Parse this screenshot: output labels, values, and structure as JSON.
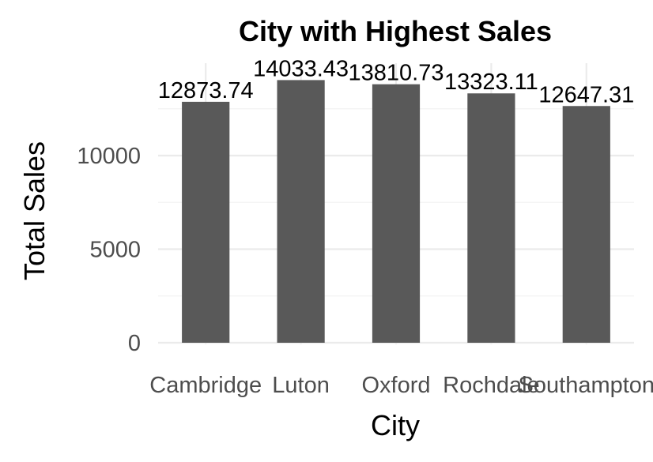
{
  "chart_data": {
    "type": "bar",
    "title": "City with Highest Sales",
    "xlabel": "City",
    "ylabel": "Total Sales",
    "categories": [
      "Cambridge",
      "Luton",
      "Oxford",
      "Rochdale",
      "Southampton"
    ],
    "values": [
      12873.74,
      14033.43,
      13810.73,
      13323.11,
      12647.31
    ],
    "data_labels": [
      "12873.74",
      "14033.43",
      "13810.73",
      "13323.11",
      "12647.31"
    ],
    "yticks": [
      0,
      5000,
      10000
    ],
    "ylim": [
      0,
      14100
    ],
    "grid": true,
    "legend": "none",
    "bar_color": "#595959"
  }
}
